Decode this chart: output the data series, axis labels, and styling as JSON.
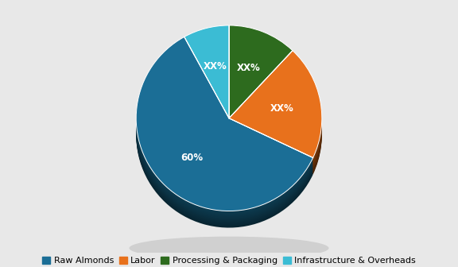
{
  "labels": [
    "Raw Almonds",
    "Labor",
    "Processing & Packaging",
    "Infrastructure & Overheads"
  ],
  "values": [
    60,
    20,
    12,
    8
  ],
  "display_labels": [
    "60%",
    "XX%",
    "XX%",
    "XX%"
  ],
  "colors": [
    "#1b6e96",
    "#e8711c",
    "#2d6b1e",
    "#3bbcd4"
  ],
  "dark_colors": [
    "#0d3d52",
    "#7a3a0a",
    "#163510",
    "#1a6b7a"
  ],
  "background_color": "#e8e8e8",
  "legend_labels": [
    "Raw Almonds",
    "Labor",
    "Processing & Packaging",
    "Infrastructure & Overheads"
  ],
  "startangle": 90,
  "label_fontsize": 8.5,
  "legend_fontsize": 8,
  "depth": 0.18,
  "n_depth_layers": 15
}
